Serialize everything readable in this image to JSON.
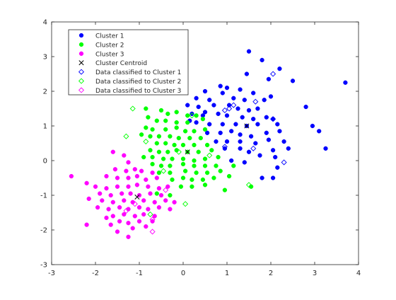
{
  "chart_data": {
    "type": "scatter",
    "title": "",
    "xlabel": "",
    "ylabel": "",
    "xlim": [
      -3,
      4
    ],
    "ylim": [
      -3,
      4
    ],
    "xticks": [
      -3,
      -2,
      -1,
      0,
      1,
      2,
      3,
      4
    ],
    "yticks": [
      -3,
      -2,
      -1,
      0,
      1,
      2,
      3,
      4
    ],
    "grid": false,
    "legend_position": "top-left",
    "legend": [
      {
        "label": "Cluster 1",
        "color": "#0000ff",
        "marker": "filled-circle"
      },
      {
        "label": "Cluster 2",
        "color": "#00ff00",
        "marker": "filled-circle"
      },
      {
        "label": "Cluster 3",
        "color": "#ff00ff",
        "marker": "filled-circle"
      },
      {
        "label": "Cluster Centroid",
        "color": "#000000",
        "marker": "x"
      },
      {
        "label": "Data classified to Cluster 1",
        "color": "#0000ff",
        "marker": "open-diamond"
      },
      {
        "label": "Data classified to Cluster 2",
        "color": "#00ff00",
        "marker": "open-diamond"
      },
      {
        "label": "Data classified to Cluster 3",
        "color": "#ff00ff",
        "marker": "open-diamond"
      }
    ],
    "series": [
      {
        "name": "Cluster 1",
        "color": "#0000ff",
        "marker": "filled-circle",
        "points": [
          [
            1.5,
            3.15
          ],
          [
            1.8,
            2.9
          ],
          [
            2.2,
            2.65
          ],
          [
            2.5,
            2.3
          ],
          [
            1.45,
            2.5
          ],
          [
            1.95,
            2.35
          ],
          [
            3.7,
            2.25
          ],
          [
            0.85,
            2.15
          ],
          [
            1.0,
            2.1
          ],
          [
            0.5,
            2.0
          ],
          [
            1.3,
            2.05
          ],
          [
            1.6,
            1.95
          ],
          [
            0.9,
            1.95
          ],
          [
            0.3,
            1.8
          ],
          [
            0.6,
            1.75
          ],
          [
            1.15,
            1.8
          ],
          [
            1.4,
            1.75
          ],
          [
            1.85,
            1.75
          ],
          [
            2.0,
            1.85
          ],
          [
            0.1,
            1.6
          ],
          [
            0.35,
            1.55
          ],
          [
            0.7,
            1.6
          ],
          [
            1.05,
            1.6
          ],
          [
            1.25,
            1.5
          ],
          [
            1.5,
            1.45
          ],
          [
            1.7,
            1.5
          ],
          [
            2.8,
            1.55
          ],
          [
            0.2,
            1.35
          ],
          [
            0.45,
            1.3
          ],
          [
            0.8,
            1.35
          ],
          [
            1.0,
            1.3
          ],
          [
            1.35,
            1.25
          ],
          [
            1.6,
            1.2
          ],
          [
            1.9,
            1.25
          ],
          [
            2.05,
            1.2
          ],
          [
            0.3,
            1.1
          ],
          [
            0.6,
            1.05
          ],
          [
            0.9,
            1.05
          ],
          [
            1.2,
            1.05
          ],
          [
            1.45,
            1.0
          ],
          [
            1.7,
            1.05
          ],
          [
            2.15,
            1.05
          ],
          [
            2.95,
            1.0
          ],
          [
            3.1,
            0.85
          ],
          [
            0.55,
            0.8
          ],
          [
            0.85,
            0.8
          ],
          [
            1.1,
            0.85
          ],
          [
            1.3,
            0.75
          ],
          [
            1.55,
            0.7
          ],
          [
            1.9,
            0.8
          ],
          [
            2.2,
            0.85
          ],
          [
            0.75,
            0.55
          ],
          [
            1.0,
            0.55
          ],
          [
            1.3,
            0.55
          ],
          [
            1.65,
            0.5
          ],
          [
            1.95,
            0.6
          ],
          [
            2.3,
            0.55
          ],
          [
            0.95,
            0.35
          ],
          [
            1.3,
            0.35
          ],
          [
            1.5,
            0.25
          ],
          [
            2.05,
            0.3
          ],
          [
            2.4,
            0.35
          ],
          [
            3.25,
            0.35
          ],
          [
            1.75,
            0.15
          ],
          [
            2.1,
            0.1
          ],
          [
            1.1,
            0.0
          ],
          [
            1.4,
            -0.05
          ],
          [
            2.15,
            -0.2
          ],
          [
            1.8,
            -0.5
          ],
          [
            2.05,
            -0.5
          ],
          [
            0.5,
            1.4
          ],
          [
            0.15,
            1.15
          ]
        ]
      },
      {
        "name": "Cluster 2",
        "color": "#00ff00",
        "marker": "filled-circle",
        "points": [
          [
            -0.85,
            1.5
          ],
          [
            -0.5,
            1.45
          ],
          [
            -0.35,
            1.35
          ],
          [
            -0.15,
            1.4
          ],
          [
            0.1,
            1.3
          ],
          [
            0.3,
            1.3
          ],
          [
            -0.8,
            1.25
          ],
          [
            -0.6,
            1.15
          ],
          [
            -0.4,
            1.15
          ],
          [
            -0.15,
            1.1
          ],
          [
            0.1,
            1.1
          ],
          [
            0.45,
            1.2
          ],
          [
            -0.85,
            0.95
          ],
          [
            -0.7,
            0.9
          ],
          [
            -0.4,
            0.9
          ],
          [
            -0.15,
            0.95
          ],
          [
            0.05,
            0.85
          ],
          [
            0.25,
            0.85
          ],
          [
            0.5,
            0.9
          ],
          [
            -0.95,
            0.75
          ],
          [
            -0.75,
            0.7
          ],
          [
            -0.55,
            0.7
          ],
          [
            -0.3,
            0.7
          ],
          [
            -0.1,
            0.65
          ],
          [
            0.15,
            0.65
          ],
          [
            0.4,
            0.65
          ],
          [
            -0.6,
            0.5
          ],
          [
            -0.4,
            0.5
          ],
          [
            -0.2,
            0.45
          ],
          [
            0.0,
            0.45
          ],
          [
            0.25,
            0.45
          ],
          [
            0.55,
            0.45
          ],
          [
            -0.75,
            0.3
          ],
          [
            -0.55,
            0.25
          ],
          [
            -0.35,
            0.25
          ],
          [
            -0.15,
            0.3
          ],
          [
            0.1,
            0.25
          ],
          [
            0.35,
            0.25
          ],
          [
            0.65,
            0.3
          ],
          [
            -0.9,
            0.1
          ],
          [
            -0.7,
            0.1
          ],
          [
            -0.45,
            0.05
          ],
          [
            -0.25,
            0.05
          ],
          [
            0.0,
            0.05
          ],
          [
            0.25,
            0.0
          ],
          [
            0.5,
            0.05
          ],
          [
            0.8,
            0.1
          ],
          [
            -0.7,
            -0.1
          ],
          [
            -0.5,
            -0.15
          ],
          [
            -0.3,
            -0.15
          ],
          [
            0.0,
            -0.1
          ],
          [
            0.25,
            -0.15
          ],
          [
            0.5,
            -0.15
          ],
          [
            0.75,
            -0.15
          ],
          [
            1.15,
            -0.15
          ],
          [
            -0.55,
            -0.35
          ],
          [
            -0.3,
            -0.35
          ],
          [
            0.05,
            -0.3
          ],
          [
            0.3,
            -0.35
          ],
          [
            0.55,
            -0.35
          ],
          [
            0.85,
            -0.3
          ],
          [
            -0.25,
            -0.55
          ],
          [
            0.0,
            -0.5
          ],
          [
            0.2,
            -0.55
          ],
          [
            0.45,
            -0.55
          ],
          [
            0.7,
            -0.5
          ],
          [
            1.05,
            -0.45
          ],
          [
            -0.05,
            -0.75
          ],
          [
            0.2,
            -0.75
          ],
          [
            0.5,
            -0.7
          ],
          [
            0.95,
            -0.85
          ],
          [
            1.55,
            -0.75
          ],
          [
            -0.6,
            -0.95
          ],
          [
            -0.3,
            -1.0
          ]
        ]
      },
      {
        "name": "Cluster 3",
        "color": "#ff00ff",
        "marker": "filled-circle",
        "points": [
          [
            -2.55,
            -0.45
          ],
          [
            -2.2,
            -0.65
          ],
          [
            -2.2,
            -1.85
          ],
          [
            -1.6,
            0.25
          ],
          [
            -1.35,
            0.15
          ],
          [
            -1.25,
            -0.05
          ],
          [
            -1.55,
            -0.25
          ],
          [
            -1.3,
            -0.3
          ],
          [
            -1.1,
            -0.25
          ],
          [
            -0.95,
            -0.3
          ],
          [
            -0.7,
            -0.35
          ],
          [
            -1.75,
            -0.45
          ],
          [
            -1.5,
            -0.5
          ],
          [
            -1.25,
            -0.5
          ],
          [
            -1.05,
            -0.45
          ],
          [
            -0.85,
            -0.55
          ],
          [
            -0.6,
            -0.5
          ],
          [
            -2.0,
            -0.75
          ],
          [
            -1.75,
            -0.8
          ],
          [
            -1.5,
            -0.75
          ],
          [
            -1.25,
            -0.75
          ],
          [
            -1.05,
            -0.7
          ],
          [
            -0.8,
            -0.75
          ],
          [
            -0.55,
            -0.8
          ],
          [
            -0.35,
            -0.75
          ],
          [
            -1.9,
            -0.95
          ],
          [
            -1.65,
            -1.0
          ],
          [
            -1.4,
            -0.95
          ],
          [
            -1.2,
            -0.95
          ],
          [
            -1.0,
            -1.0
          ],
          [
            -0.75,
            -0.95
          ],
          [
            -0.5,
            -1.0
          ],
          [
            -2.15,
            -1.1
          ],
          [
            -1.85,
            -1.15
          ],
          [
            -1.6,
            -1.2
          ],
          [
            -1.35,
            -1.15
          ],
          [
            -1.15,
            -1.2
          ],
          [
            -0.9,
            -1.15
          ],
          [
            -0.65,
            -1.2
          ],
          [
            -0.4,
            -1.15
          ],
          [
            -0.2,
            -1.2
          ],
          [
            -1.95,
            -1.35
          ],
          [
            -1.7,
            -1.4
          ],
          [
            -1.45,
            -1.35
          ],
          [
            -1.25,
            -1.4
          ],
          [
            -1.0,
            -1.35
          ],
          [
            -0.8,
            -1.4
          ],
          [
            -0.55,
            -1.35
          ],
          [
            -0.3,
            -1.4
          ],
          [
            -1.6,
            -1.6
          ],
          [
            -1.35,
            -1.55
          ],
          [
            -1.1,
            -1.6
          ],
          [
            -0.9,
            -1.55
          ],
          [
            -0.65,
            -1.6
          ],
          [
            -1.75,
            -1.65
          ],
          [
            -1.45,
            -1.75
          ],
          [
            -1.25,
            -1.8
          ],
          [
            -1.0,
            -1.75
          ],
          [
            -0.7,
            -1.75
          ],
          [
            -1.65,
            -1.85
          ],
          [
            -1.15,
            -1.95
          ],
          [
            -0.85,
            -1.9
          ],
          [
            -1.25,
            -2.2
          ],
          [
            -1.5,
            -2.05
          ]
        ]
      },
      {
        "name": "Cluster Centroid",
        "color": "#000000",
        "marker": "x",
        "points": [
          [
            1.45,
            1.0
          ],
          [
            0.1,
            0.25
          ],
          [
            -1.05,
            -1.05
          ]
        ]
      },
      {
        "name": "Data classified to Cluster 1",
        "color": "#0000ff",
        "marker": "open-diamond",
        "points": [
          [
            2.05,
            2.5
          ],
          [
            1.15,
            1.6
          ],
          [
            0.95,
            1.45
          ],
          [
            1.65,
            1.7
          ],
          [
            2.05,
            1.2
          ],
          [
            1.6,
            0.35
          ],
          [
            2.3,
            -0.05
          ],
          [
            0.95,
            0.4
          ],
          [
            1.05,
            1.5
          ]
        ]
      },
      {
        "name": "Data classified to Cluster 2",
        "color": "#00ff00",
        "marker": "open-diamond",
        "points": [
          [
            -1.15,
            1.5
          ],
          [
            0.2,
            1.3
          ],
          [
            -1.3,
            0.7
          ],
          [
            -0.85,
            0.55
          ],
          [
            -0.1,
            0.25
          ],
          [
            0.6,
            0.15
          ],
          [
            1.5,
            -0.7
          ],
          [
            0.05,
            -1.25
          ],
          [
            -0.75,
            -1.55
          ],
          [
            -0.45,
            -0.3
          ]
        ]
      },
      {
        "name": "Data classified to Cluster 3",
        "color": "#ff00ff",
        "marker": "open-diamond",
        "points": [
          [
            -1.3,
            -1.45
          ],
          [
            -0.7,
            -1.7
          ],
          [
            -0.7,
            -2.05
          ],
          [
            -1.1,
            -1.25
          ],
          [
            -0.4,
            -0.85
          ]
        ]
      }
    ]
  }
}
